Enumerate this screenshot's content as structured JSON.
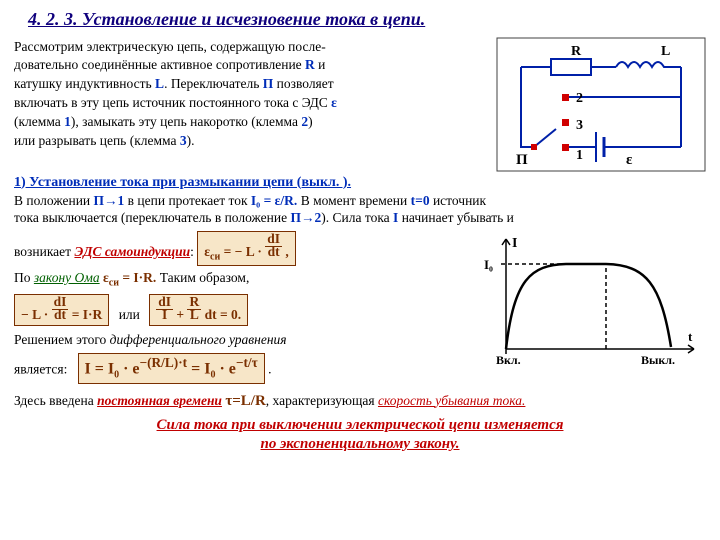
{
  "title": "4. 2. 3. Установление и исчезновение тока в цепи.",
  "intro": {
    "l1": "Рассмотрим электрическую цепь, содержащую после-",
    "l2": "довательно соединённые активное сопротивление ",
    "R": "R",
    "l2b": " и",
    "l3a": "катушку индуктивность ",
    "L": "L",
    "l3b": ". Переключатель ",
    "P": "П",
    "l3c": " позволяет",
    "l4a": "включать в эту цепь источник постоянного тока с ЭДС ",
    "eps": "ε",
    "l5a": "(клемма ",
    "c1": "1",
    "l5b": "),  замыкать эту цепь накоротко (клемма ",
    "c2": "2",
    "l5c": ")",
    "l6a": "или разрывать цепь (клемма ",
    "c3": "3",
    "l6b": ")."
  },
  "sec1_head": "1) Установление тока при размыкании цепи (выкл. ).",
  "p2": {
    "a": "В положении ",
    "p1": "П→1",
    "b": " в цепи протекает ток ",
    "i0": "I₀ = ε/R.",
    "c": "  В момент времени  ",
    "t0": "t=0",
    "d": "  источник",
    "line2a": "тока выключается (переключатель в положение  ",
    "p2": "П→2",
    "line2b": ").   Сила тока  ",
    "I": "I",
    "line2c": "  начинает убывать и",
    "line3a": "возникает ",
    "si": "ЭДС самоиндукции",
    "colon": ": ",
    "line4a": " По ",
    "ohm": "закону Ома",
    "ohm_eq": " ε",
    "ohm_eq_sub": "си",
    "ohm_eq2": " = I·R.",
    "line4b": "  Таким образом, "
  },
  "eq1": "ε<span class='sub'>си</span> = − L · <span style='display:inline-block;text-align:center;line-height:0.95'><span style='border-bottom:1px solid #7a2f00;padding:0 2px'>dI</span><br>dt</span> ,",
  "eq2_left": "− L · <span style='display:inline-block;text-align:center;line-height:0.95'><span style='border-bottom:1px solid #7a2f00;padding:0 2px'>dI</span><br>dt</span> = I·R",
  "eq2_or": "или",
  "eq2_right": "<span style='display:inline-block;text-align:center;line-height:0.95'><span style='border-bottom:1px solid #7a2f00;padding:0 2px'>dI</span><br>I</span> + <span style='display:inline-block;text-align:center;line-height:0.95'><span style='border-bottom:1px solid #7a2f00;padding:0 2px'>R</span><br>L</span> dt = 0.",
  "p3a": "Решением этого ",
  "p3b": "дифференциального уравнения",
  "p4": "является:",
  "eq3": "I = I<span class='sub'>0</span> · e<sup>−(R/L)·t</sup> = I<span class='sub'>0</span> · e<sup>−t/τ</sup>",
  "p5a": "Здесь введена ",
  "p5b": "постоянная времени",
  "p5c": " τ=L/R",
  "p5d": ", характеризующая ",
  "p5e": "скорость убывания тока.",
  "conc1": "Сила тока при выключении электрической цепи изменяется",
  "conc2": "по экспоненциальному закону.",
  "circuit": {
    "R": "R",
    "L": "L",
    "P": "П",
    "eps": "ε",
    "n1": "1",
    "n2": "2",
    "n3": "3",
    "wire_color": "#0020a8",
    "node_color": "#d00000",
    "box_border": "#404040"
  },
  "graph": {
    "ylabel": "I",
    "I0": "I₀",
    "xlabel": "t",
    "on": "Вкл.",
    "off": "Выкл.",
    "bg": "#ffffff",
    "axis": "#000000",
    "curve": "#000000"
  }
}
